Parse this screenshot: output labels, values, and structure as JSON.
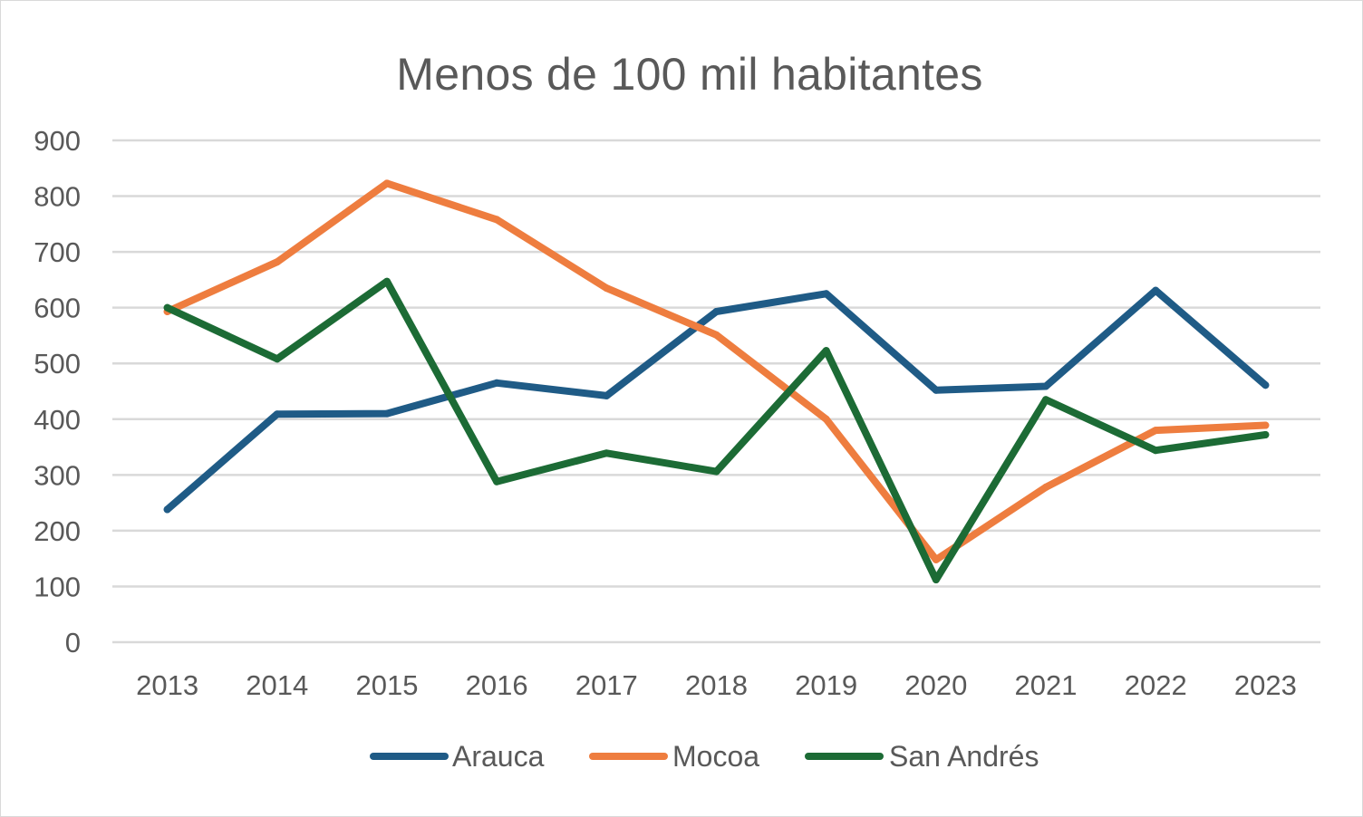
{
  "chart_data": {
    "type": "line",
    "title": "Menos de 100 mil habitantes",
    "xlabel": "",
    "ylabel": "",
    "categories": [
      "2013",
      "2014",
      "2015",
      "2016",
      "2017",
      "2018",
      "2019",
      "2020",
      "2021",
      "2022",
      "2023"
    ],
    "ylim": [
      0,
      900
    ],
    "yticks": [
      0,
      100,
      200,
      300,
      400,
      500,
      600,
      700,
      800,
      900
    ],
    "grid": true,
    "legend_position": "bottom",
    "series": [
      {
        "name": "Arauca",
        "color": "#1f5b86",
        "values": [
          238,
          409,
          410,
          465,
          442,
          593,
          625,
          452,
          459,
          631,
          461
        ]
      },
      {
        "name": "Mocoa",
        "color": "#ee7d3f",
        "values": [
          593,
          682,
          823,
          758,
          635,
          551,
          400,
          148,
          278,
          380,
          389
        ]
      },
      {
        "name": "San Andrés",
        "color": "#1c6b35",
        "values": [
          600,
          508,
          647,
          288,
          339,
          306,
          523,
          112,
          435,
          344,
          372
        ]
      }
    ]
  }
}
